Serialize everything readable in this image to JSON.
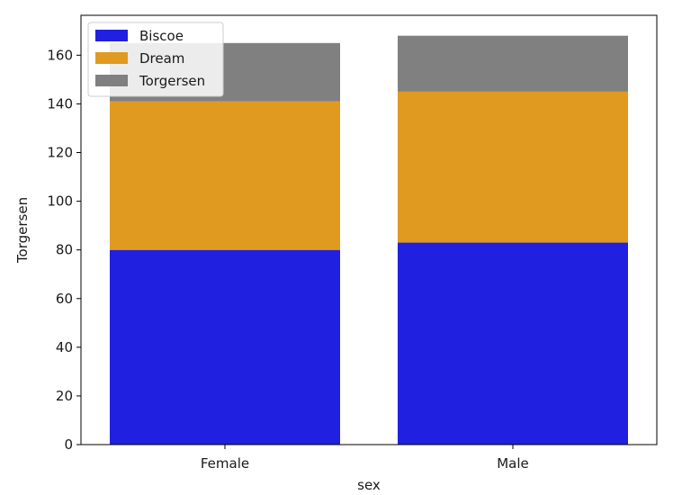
{
  "chart_data": {
    "type": "bar",
    "stacked": true,
    "categories": [
      "Female",
      "Male"
    ],
    "series": [
      {
        "name": "Biscoe",
        "values": [
          80,
          83
        ],
        "color": "#2020e0"
      },
      {
        "name": "Dream",
        "values": [
          61,
          62
        ],
        "color": "#e09a20"
      },
      {
        "name": "Torgersen",
        "values": [
          24,
          23
        ],
        "color": "#808080"
      }
    ],
    "xlabel": "sex",
    "ylabel": "Torgersen",
    "ylim": [
      0,
      176.4
    ],
    "yticks": [
      0,
      20,
      40,
      60,
      80,
      100,
      120,
      140,
      160
    ],
    "grid": false,
    "legend_position": "top-left"
  }
}
